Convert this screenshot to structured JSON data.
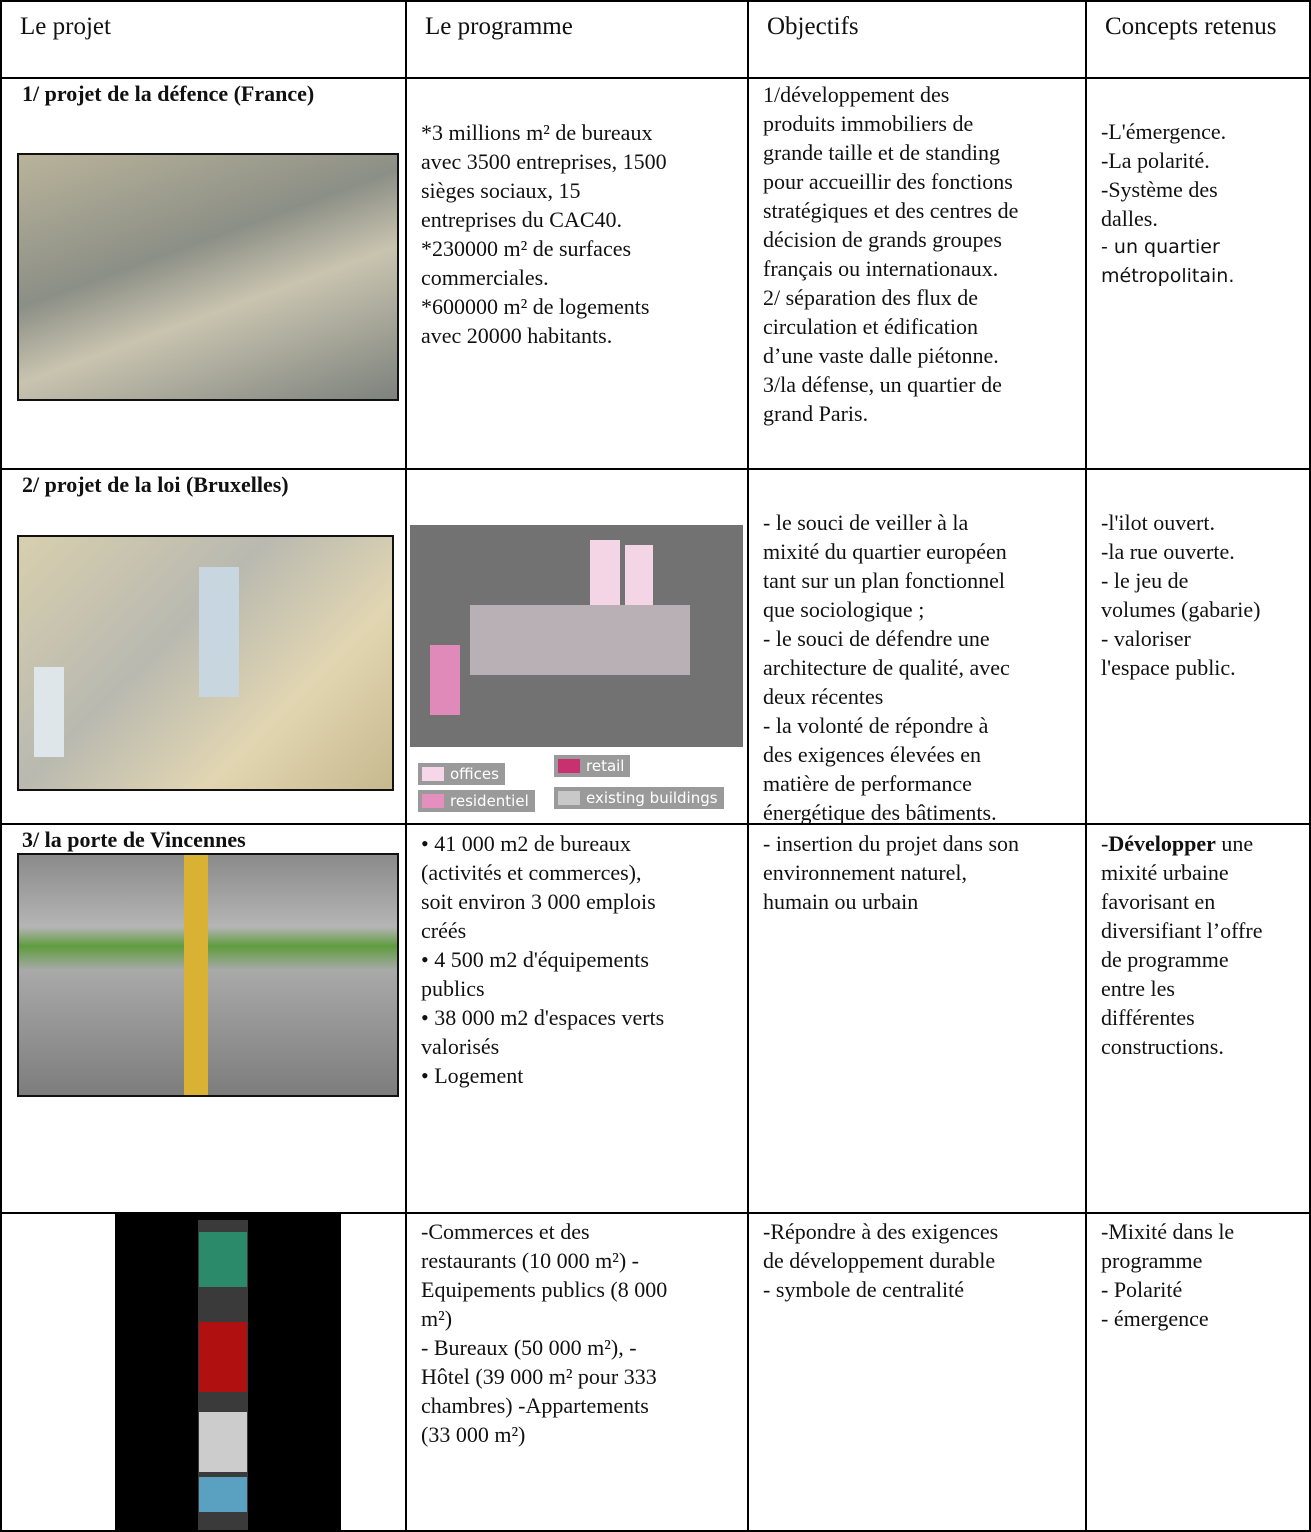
{
  "table": {
    "header": [
      "Le projet",
      "Le programme",
      "Objectifs",
      "Concepts retenus"
    ],
    "rows": [
      {
        "project": "1/ projet de la défence (France)",
        "program": [
          "*3 millions m² de bureaux",
          "avec 3500 entreprises, 1500",
          "sièges sociaux, 15",
          "entreprises du CAC40.",
          "*230000 m² de surfaces",
          "commerciales.",
          "*600000 m² de logements",
          "avec 20000 habitants."
        ],
        "objectives": [
          "1/développement des",
          "produits immobiliers de",
          "grande taille et de standing",
          "pour accueillir des fonctions",
          "stratégiques et des centres de",
          "décision de grands groupes",
          "français ou internationaux.",
          "2/ séparation des flux de",
          "circulation et édification",
          "d’une vaste dalle piétonne.",
          "3/la défense, un quartier de",
          "grand Paris."
        ],
        "concepts": [
          "-L'émergence.",
          "-La polarité.",
          "-Système des",
          "dalles.",
          {
            "text": "- un quartier",
            "sans": true
          },
          {
            "text": "métropolitain.",
            "sans": true
          }
        ]
      },
      {
        "project": "2/ projet de la loi (Bruxelles)",
        "program": [],
        "legend": [
          "offices",
          "retail",
          "residentiel",
          "existing buildings"
        ],
        "objectives": [
          "- le souci de veiller à la",
          "mixité du quartier européen",
          "tant sur un plan fonctionnel",
          "que sociologique ;",
          "- le souci de défendre une",
          "architecture de qualité, avec",
          "deux récentes",
          "- la volonté de répondre à",
          "des exigences élevées en",
          "matière de performance",
          "énergétique des bâtiments."
        ],
        "concepts": [
          "-l'ilot ouvert.",
          "-la rue ouverte.",
          "- le jeu de",
          "volumes (gabarie)",
          "- valoriser",
          "l'espace public."
        ]
      },
      {
        "project": "3/ la porte de Vincennes",
        "program": [
          "• 41 000 m2 de bureaux",
          "(activités et commerces),",
          "soit environ 3 000 emplois",
          "créés",
          "• 4 500 m2 d'équipements",
          "publics",
          "• 38 000 m2 d'espaces verts",
          "valorisés",
          "• Logement"
        ],
        "objectives": [
          "- insertion du projet dans son",
          "environnement naturel,",
          "humain ou urbain"
        ],
        "concepts": [
          [
            {
              "text": "-"
            },
            {
              "text": "Développer",
              "bold": true
            },
            {
              "text": " une"
            }
          ],
          "mixité urbaine",
          "favorisant en",
          "diversifiant l’offre",
          "de programme",
          "entre les",
          "différentes",
          "constructions."
        ]
      },
      {
        "program": [
          "-Commerces et des",
          "restaurants (10 000 m²) -",
          "Equipements publics (8 000",
          "m²)",
          "- Bureaux (50 000 m²), -",
          "Hôtel (39 000 m² pour 333",
          "chambres) -Appartements",
          "(33 000 m²)"
        ],
        "objectives": [
          "-Répondre à des exigences",
          "de développement durable",
          "- symbole de centralité"
        ],
        "concepts": [
          "-Mixité dans le",
          "programme",
          "- Polarité",
          "- émergence"
        ]
      }
    ]
  }
}
